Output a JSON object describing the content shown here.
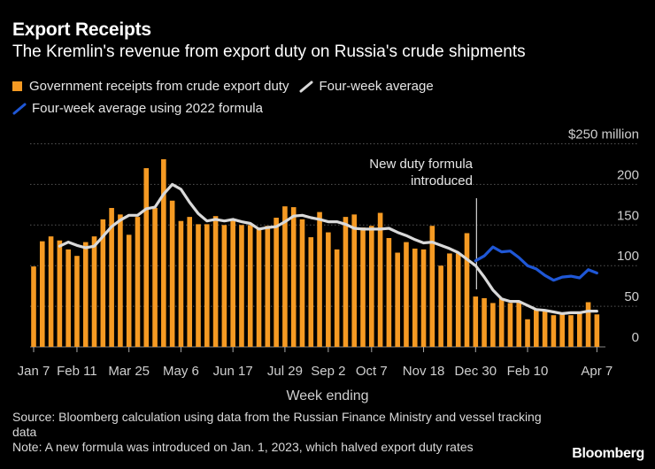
{
  "title": "Export Receipts",
  "subtitle": "The Kremlin's revenue from export duty on Russia's crude shipments",
  "legend": {
    "receipts": "Government receipts from crude export duty",
    "avg": "Four-week average",
    "avg2022": "Four-week average using 2022 formula"
  },
  "colors": {
    "bars": "#f59a23",
    "avg": "#d9d9d9",
    "avg2022": "#1f57d6",
    "grid": "#555555"
  },
  "source": "Source: Bloomberg calculation using data from the Russian Finance Ministry and vessel tracking data",
  "note": "Note: A new formula was introduced on Jan. 1, 2023, which halved export duty rates",
  "brand": "Bloomberg",
  "chart_data": {
    "type": "bar",
    "title": "Export Receipts",
    "xlabel": "Week ending",
    "ylabel": "",
    "y_unit_label": "$250 million",
    "ylim": [
      0,
      250
    ],
    "yticks": [
      0,
      50,
      100,
      150,
      200
    ],
    "ytick_labels": [
      "0",
      "50",
      "100",
      "150",
      "200"
    ],
    "xtick_labels": [
      "Jan 7",
      "Feb 11",
      "Mar 25",
      "May 6",
      "Jun 17",
      "Jul 29",
      "Sep 2",
      "Oct 7",
      "Nov 18",
      "Dec 30",
      "Feb 10",
      "Apr 7"
    ],
    "xtick_index": [
      0,
      5,
      11,
      17,
      23,
      29,
      34,
      39,
      45,
      51,
      57,
      65
    ],
    "annotation": {
      "text": [
        "New duty formula",
        "introduced"
      ],
      "index": 51
    },
    "series": [
      {
        "name": "Government receipts from crude export duty",
        "kind": "bar",
        "values": [
          99,
          130,
          136,
          131,
          120,
          112,
          129,
          136,
          157,
          171,
          163,
          138,
          160,
          220,
          171,
          231,
          180,
          155,
          160,
          151,
          151,
          161,
          150,
          156,
          150,
          150,
          147,
          149,
          159,
          173,
          172,
          157,
          135,
          166,
          141,
          120,
          160,
          163,
          147,
          149,
          165,
          134,
          116,
          129,
          121,
          120,
          149,
          100,
          115,
          115,
          140,
          62,
          60,
          54,
          60,
          54,
          56,
          34,
          47,
          46,
          39,
          42,
          39,
          43,
          55,
          40
        ]
      },
      {
        "name": "Four-week average",
        "kind": "line",
        "values": [
          null,
          null,
          null,
          124,
          129,
          125,
          122,
          124,
          136,
          148,
          156,
          162,
          162,
          170,
          172,
          188,
          200,
          194,
          178,
          164,
          155,
          157,
          155,
          157,
          154,
          152,
          145,
          147,
          148,
          154,
          161,
          162,
          159,
          157,
          154,
          154,
          151,
          146,
          145,
          145,
          145,
          146,
          141,
          137,
          132,
          128,
          129,
          125,
          121,
          116,
          108,
          100,
          86,
          70,
          59,
          56,
          56,
          51,
          46,
          45,
          43,
          41,
          42,
          42,
          44,
          44
        ]
      },
      {
        "name": "Four-week average using 2022 formula",
        "kind": "line",
        "values": [
          null,
          null,
          null,
          null,
          null,
          null,
          null,
          null,
          null,
          null,
          null,
          null,
          null,
          null,
          null,
          null,
          null,
          null,
          null,
          null,
          null,
          null,
          null,
          null,
          null,
          null,
          null,
          null,
          null,
          null,
          null,
          null,
          null,
          null,
          null,
          null,
          null,
          null,
          null,
          null,
          null,
          null,
          null,
          null,
          null,
          null,
          null,
          null,
          null,
          null,
          null,
          106,
          112,
          123,
          117,
          118,
          110,
          100,
          96,
          88,
          82,
          86,
          87,
          85,
          95,
          91
        ]
      }
    ]
  }
}
